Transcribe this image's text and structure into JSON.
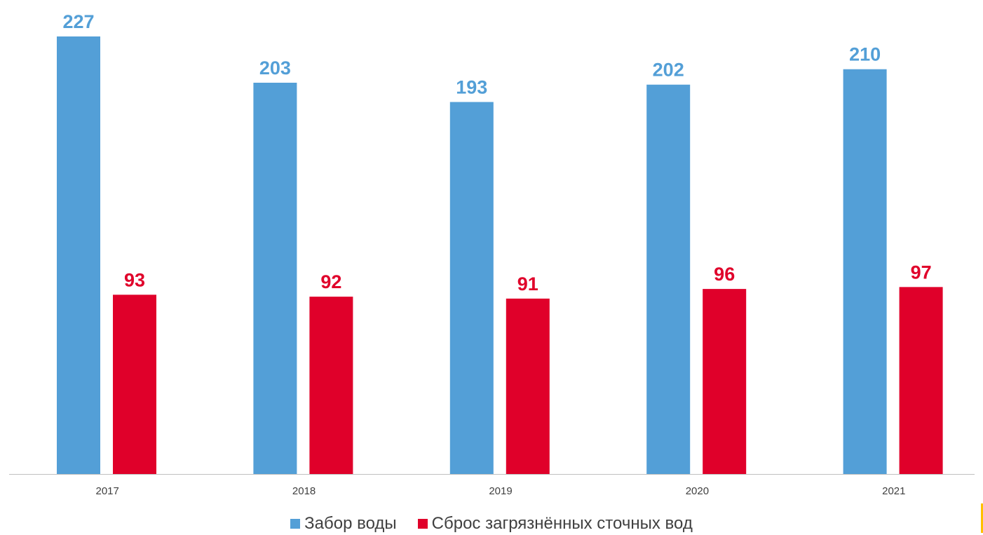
{
  "chart_data": {
    "type": "bar",
    "categories": [
      "2017",
      "2018",
      "2019",
      "2020",
      "2021"
    ],
    "series": [
      {
        "name": "Забор воды",
        "values": [
          227,
          203,
          193,
          202,
          210
        ],
        "color": "#539fd7"
      },
      {
        "name": "Сброс загрязнённых сточных вод",
        "values": [
          93,
          92,
          91,
          96,
          97
        ],
        "color": "#e0002a"
      }
    ],
    "ylim": [
      0,
      227
    ],
    "grid": false,
    "legend_position": "bottom",
    "data_labels": true
  }
}
